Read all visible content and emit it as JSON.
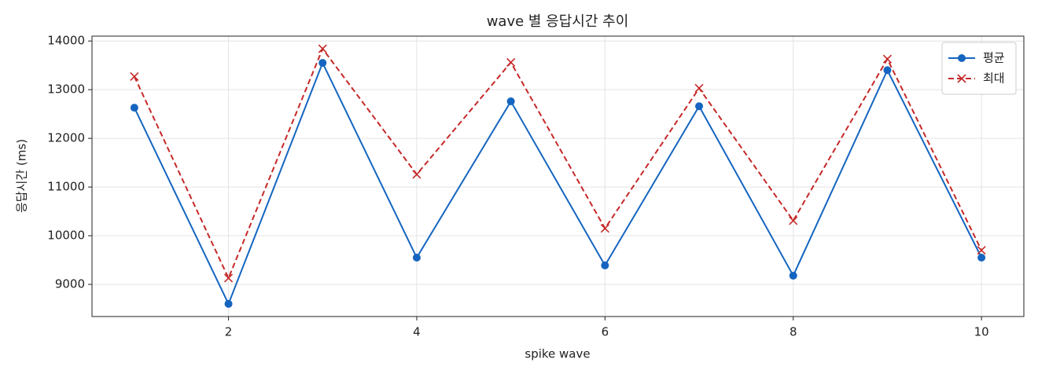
{
  "chart_data": {
    "type": "line",
    "title": "wave 별 응답시간 추이",
    "x_label": "spike wave",
    "y_label": "응답시간 (ms)",
    "x": [
      1,
      2,
      3,
      4,
      5,
      6,
      7,
      8,
      9,
      10
    ],
    "series": [
      {
        "name": "평균",
        "color": "#1565c0",
        "marker": "o",
        "linestyle": "solid",
        "values": [
          12630,
          8600,
          13550,
          9550,
          12760,
          9390,
          12660,
          9180,
          13400,
          9550
        ]
      },
      {
        "name": "최대",
        "color": "#c62828",
        "marker": "x",
        "linestyle": "dashed",
        "values": [
          13270,
          9130,
          13840,
          11260,
          13560,
          10150,
          13030,
          10310,
          13630,
          9700
        ]
      }
    ],
    "xlim": [
      0.55,
      10.45
    ],
    "ylim": [
      8340,
      14100
    ],
    "xticks": [
      2,
      4,
      6,
      8,
      10
    ],
    "yticks": [
      9000,
      10000,
      11000,
      12000,
      13000,
      14000
    ],
    "grid": true,
    "legend": "upper right"
  }
}
